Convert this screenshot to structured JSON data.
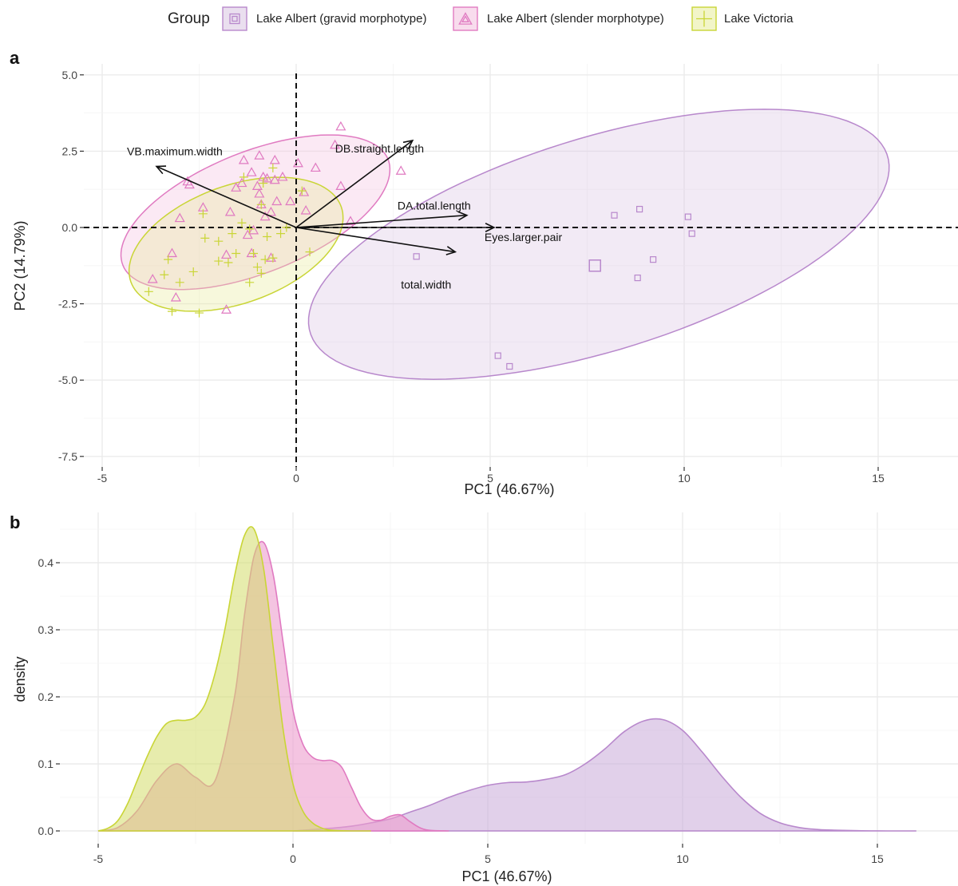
{
  "legend": {
    "title": "Group",
    "items": [
      {
        "label": "Lake Albert (gravid morphotype)",
        "color": "#b888cc",
        "fill": "#d9c4e2",
        "shape": "square"
      },
      {
        "label": "Lake Albert (slender morphotype)",
        "color": "#e07ac1",
        "fill": "#f3bfdf",
        "shape": "triangle"
      },
      {
        "label": "Lake Victoria",
        "color": "#c9d536",
        "fill": "#e8ec9a",
        "shape": "plus"
      }
    ]
  },
  "panels": {
    "a": {
      "letter": "a"
    },
    "b": {
      "letter": "b"
    }
  },
  "chart_data": [
    {
      "type": "scatter",
      "panel": "a",
      "xlabel": "PC1 (46.67%)",
      "ylabel": "PC2 (14.79%)",
      "xlim": [
        -5,
        17.5
      ],
      "ylim": [
        -7.5,
        5
      ],
      "xticks": [
        -5,
        0,
        5,
        10,
        15
      ],
      "yticks": [
        -7.5,
        -5.0,
        -2.5,
        0.0,
        2.5,
        5.0
      ],
      "ytick_labels": [
        "-7.5",
        "-5.0",
        "-2.5",
        "0.0",
        "2.5",
        "5.0"
      ],
      "grid": true,
      "reference_lines": {
        "x": 0,
        "y": 0,
        "style": "dashed"
      },
      "series": [
        {
          "name": "Lake Albert (gravid morphotype)",
          "marker": "square",
          "points": [
            [
              8.2,
              0.4
            ],
            [
              8.85,
              0.6
            ],
            [
              10.1,
              0.35
            ],
            [
              10.2,
              -0.2
            ],
            [
              9.2,
              -1.05
            ],
            [
              8.8,
              -1.65
            ],
            [
              3.1,
              -0.95
            ],
            [
              5.2,
              -4.2
            ],
            [
              5.5,
              -4.55
            ]
          ],
          "centroid": [
            7.7,
            -1.25
          ],
          "ellipse": {
            "center": [
              7.8,
              -0.55
            ],
            "semi_major": 8.0,
            "semi_minor": 3.4,
            "angle_deg": 23
          }
        },
        {
          "name": "Lake Albert (slender morphotype)",
          "marker": "triangle",
          "points": [
            [
              1.15,
              3.3
            ],
            [
              1.0,
              2.7
            ],
            [
              -0.95,
              2.35
            ],
            [
              -1.35,
              2.2
            ],
            [
              -0.55,
              2.2
            ],
            [
              0.05,
              2.1
            ],
            [
              0.5,
              1.95
            ],
            [
              2.7,
              1.85
            ],
            [
              -1.15,
              1.8
            ],
            [
              -0.85,
              1.65
            ],
            [
              -0.75,
              1.6
            ],
            [
              -0.55,
              1.55
            ],
            [
              -0.35,
              1.65
            ],
            [
              -1.4,
              1.45
            ],
            [
              -1.0,
              1.35
            ],
            [
              -1.55,
              1.3
            ],
            [
              -2.8,
              1.5
            ],
            [
              -2.75,
              1.4
            ],
            [
              1.15,
              1.35
            ],
            [
              0.2,
              1.15
            ],
            [
              -0.95,
              1.1
            ],
            [
              -0.15,
              0.85
            ],
            [
              -0.5,
              0.85
            ],
            [
              -0.9,
              0.75
            ],
            [
              -2.4,
              0.65
            ],
            [
              -1.7,
              0.5
            ],
            [
              0.25,
              0.55
            ],
            [
              1.4,
              0.2
            ],
            [
              -0.65,
              0.5
            ],
            [
              -0.8,
              0.35
            ],
            [
              -3.0,
              0.3
            ],
            [
              -1.1,
              -0.1
            ],
            [
              -1.25,
              -0.25
            ],
            [
              -3.2,
              -0.85
            ],
            [
              -3.7,
              -1.7
            ],
            [
              -1.8,
              -0.9
            ],
            [
              -1.15,
              -0.85
            ],
            [
              -0.65,
              -1.0
            ],
            [
              -3.1,
              -2.3
            ],
            [
              -1.8,
              -2.7
            ]
          ],
          "ellipse": {
            "center": [
              -1.05,
              0.5
            ],
            "semi_major": 3.85,
            "semi_minor": 1.9,
            "angle_deg": 30
          }
        },
        {
          "name": "Lake Victoria",
          "marker": "plus",
          "points": [
            [
              -0.6,
              1.95
            ],
            [
              -1.35,
              1.65
            ],
            [
              -0.85,
              1.45
            ],
            [
              0.15,
              1.2
            ],
            [
              -0.9,
              0.75
            ],
            [
              -2.4,
              0.45
            ],
            [
              -1.4,
              0.15
            ],
            [
              -0.25,
              0.0
            ],
            [
              -1.2,
              -0.05
            ],
            [
              -1.65,
              -0.2
            ],
            [
              -2.35,
              -0.35
            ],
            [
              -2.0,
              -0.45
            ],
            [
              -0.75,
              -0.3
            ],
            [
              -0.4,
              -0.2
            ],
            [
              -3.3,
              -1.05
            ],
            [
              -2.0,
              -1.1
            ],
            [
              -1.75,
              -1.15
            ],
            [
              -1.55,
              -0.85
            ],
            [
              -1.1,
              -0.85
            ],
            [
              -0.8,
              -1.05
            ],
            [
              -0.6,
              -1.0
            ],
            [
              0.35,
              -0.8
            ],
            [
              -1.0,
              -1.3
            ],
            [
              -3.4,
              -1.55
            ],
            [
              -2.65,
              -1.45
            ],
            [
              -3.0,
              -1.8
            ],
            [
              -1.2,
              -1.8
            ],
            [
              -0.9,
              -1.5
            ],
            [
              -3.8,
              -2.1
            ],
            [
              -3.2,
              -2.75
            ],
            [
              -2.5,
              -2.8
            ]
          ],
          "ellipse": {
            "center": [
              -1.55,
              -0.55
            ],
            "semi_major": 3.0,
            "semi_minor": 1.85,
            "angle_deg": 30
          }
        }
      ],
      "loadings": [
        {
          "label": "VB.maximum.width",
          "x": -3.6,
          "y": 2.0
        },
        {
          "label": "DB.straight.length",
          "x": 3.0,
          "y": 2.85
        },
        {
          "label": "DA.total.length",
          "x": 4.4,
          "y": 0.4
        },
        {
          "label": "Eyes.larger.pair",
          "x": 5.1,
          "y": 0.0
        },
        {
          "label": "total.width",
          "x": 4.1,
          "y": -0.8
        }
      ]
    },
    {
      "type": "area",
      "panel": "b",
      "xlabel": "PC1 (46.67%)",
      "ylabel": "density",
      "xlim": [
        -5,
        16
      ],
      "ylim": [
        0,
        0.45
      ],
      "xticks": [
        -5,
        0,
        5,
        10,
        15
      ],
      "yticks": [
        0.0,
        0.1,
        0.2,
        0.3,
        0.4
      ],
      "ytick_labels": [
        "0.0",
        "0.1",
        "0.2",
        "0.3",
        "0.4"
      ],
      "grid": true,
      "series": [
        {
          "name": "Lake Albert (gravid morphotype)",
          "x": [
            0,
            0.5,
            1,
            1.5,
            2,
            2.5,
            3,
            3.5,
            4,
            4.5,
            5,
            5.5,
            6,
            6.5,
            7,
            7.5,
            8,
            8.5,
            9,
            9.5,
            10,
            10.5,
            11,
            11.5,
            12,
            12.5,
            13,
            13.5,
            14,
            14.5,
            15,
            15.5,
            16
          ],
          "y": [
            0,
            0.002,
            0.004,
            0.007,
            0.012,
            0.018,
            0.028,
            0.038,
            0.05,
            0.06,
            0.068,
            0.072,
            0.073,
            0.077,
            0.084,
            0.1,
            0.122,
            0.148,
            0.164,
            0.166,
            0.15,
            0.118,
            0.082,
            0.05,
            0.026,
            0.012,
            0.005,
            0.002,
            0.001,
            0.0003,
            0.0001,
            0,
            0
          ]
        },
        {
          "name": "Lake Albert (slender morphotype)",
          "x": [
            -5,
            -4.5,
            -4,
            -3.5,
            -3,
            -2.5,
            -2,
            -1.5,
            -1.25,
            -1,
            -0.75,
            -0.5,
            -0.25,
            0,
            0.25,
            0.5,
            0.75,
            1,
            1.25,
            1.5,
            1.75,
            2,
            2.25,
            2.5,
            2.75,
            3,
            3.25,
            3.5,
            4
          ],
          "y": [
            0,
            0.005,
            0.03,
            0.075,
            0.1,
            0.08,
            0.075,
            0.2,
            0.32,
            0.41,
            0.43,
            0.38,
            0.28,
            0.18,
            0.13,
            0.11,
            0.105,
            0.105,
            0.095,
            0.065,
            0.035,
            0.018,
            0.016,
            0.022,
            0.024,
            0.014,
            0.005,
            0.001,
            0
          ]
        },
        {
          "name": "Lake Victoria",
          "x": [
            -5,
            -4.75,
            -4.5,
            -4.25,
            -4,
            -3.75,
            -3.5,
            -3.25,
            -3,
            -2.75,
            -2.5,
            -2.25,
            -2,
            -1.75,
            -1.5,
            -1.25,
            -1,
            -0.75,
            -0.5,
            -0.25,
            0,
            0.25,
            0.5,
            0.75,
            1,
            1.5,
            2
          ],
          "y": [
            0,
            0.004,
            0.015,
            0.04,
            0.075,
            0.11,
            0.14,
            0.16,
            0.165,
            0.165,
            0.17,
            0.19,
            0.235,
            0.3,
            0.38,
            0.44,
            0.45,
            0.39,
            0.27,
            0.15,
            0.07,
            0.03,
            0.012,
            0.004,
            0.001,
            0,
            0
          ]
        }
      ]
    }
  ]
}
